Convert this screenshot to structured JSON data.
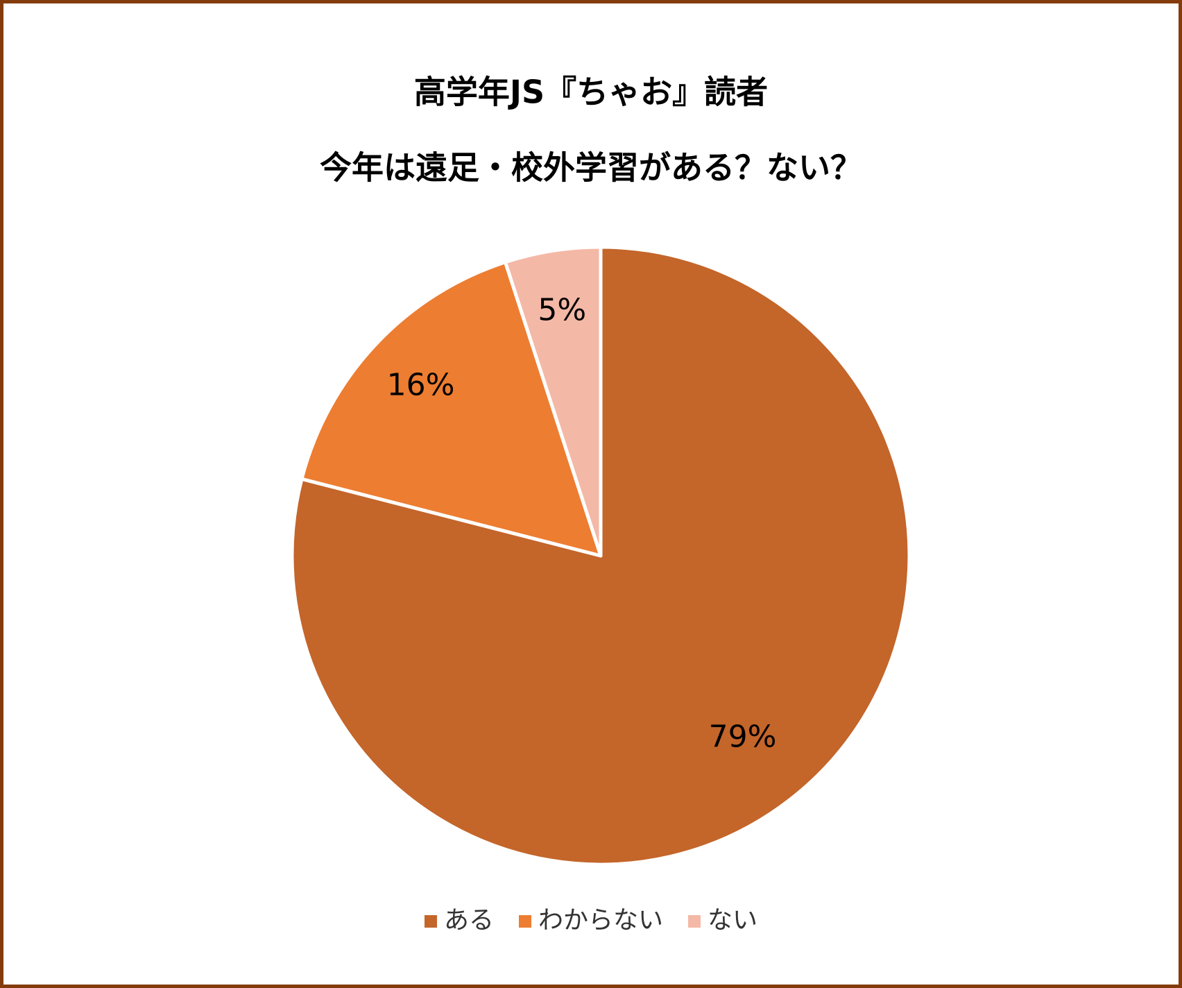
{
  "chart_data": {
    "type": "pie",
    "title": [
      "高学年JS『ちゃお』読者",
      "今年は遠足・校外学習がある？ない？"
    ],
    "categories": [
      "ある",
      "わからない",
      "ない"
    ],
    "values": [
      79,
      16,
      5
    ],
    "value_labels": [
      "79%",
      "16%",
      "5%"
    ],
    "colors": [
      "#c4652a",
      "#ed7d31",
      "#f4b8a6"
    ],
    "legend": "bottom"
  }
}
